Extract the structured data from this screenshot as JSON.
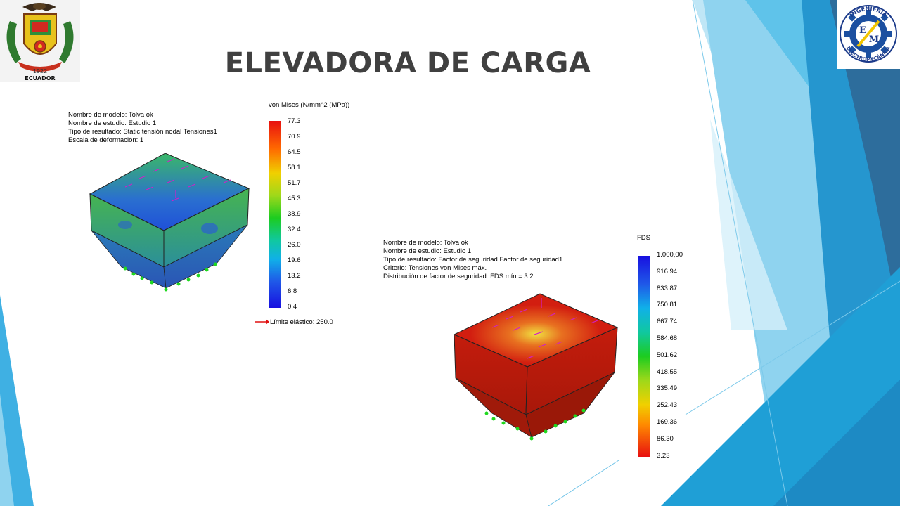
{
  "slide": {
    "title": "ELEVADORA DE CARGA"
  },
  "logo_left": {
    "caption_year": "1922",
    "caption_country": "ECUADOR"
  },
  "logo_right": {
    "ring_top": "INGENIERÍA",
    "ring_bottom": "ELECTROMECÁNICA",
    "letter_e": "E",
    "letter_m": "M"
  },
  "study1": {
    "info_lines": [
      "Nombre de modelo: Tolva ok",
      "Nombre de estudio: Estudio 1",
      "Tipo de resultado: Static tensión nodal Tensiones1",
      "Escala de deformación: 1"
    ],
    "legend_title": "von Mises (N/mm^2 (MPa))",
    "ticks": [
      "77.3",
      "70.9",
      "64.5",
      "58.1",
      "51.7",
      "45.3",
      "38.9",
      "32.4",
      "26.0",
      "19.6",
      "13.2",
      "6.8",
      "0.4"
    ],
    "yield_label": "Límite elástico: 250.0"
  },
  "study2": {
    "info_lines": [
      "Nombre de modelo: Tolva ok",
      "Nombre de estudio: Estudio 1",
      "Tipo de resultado: Factor de seguridad Factor de seguridad1",
      "Criterio: Tensiones von Mises máx.",
      "Distribución de factor de seguridad: FDS mín = 3.2"
    ],
    "legend_title": "FDS",
    "ticks": [
      "1.000,00",
      "916.94",
      "833.87",
      "750.81",
      "667.74",
      "584.68",
      "501.62",
      "418.55",
      "335.49",
      "252.43",
      "169.36",
      "86.30",
      "3.23"
    ]
  },
  "colors": {
    "title_text": "#404040",
    "deco_blue_dark": "#2d6d9c",
    "deco_blue_mid": "#1f9fd6",
    "deco_blue_light": "#8fd3ef",
    "stress_model_green": "#3aa860",
    "fds_model_red": "#c41c0c"
  }
}
